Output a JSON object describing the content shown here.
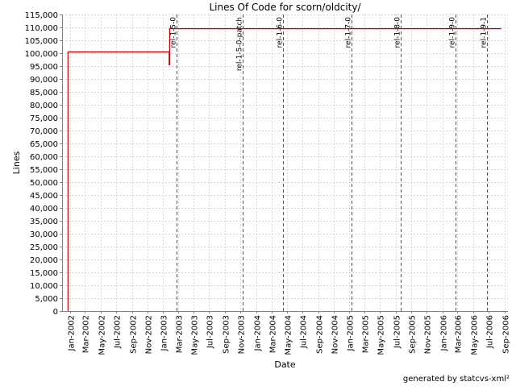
{
  "chart_data": {
    "type": "line",
    "title": "Lines Of Code for scorn/oldcity/",
    "xlabel": "Date",
    "ylabel": "Lines",
    "ylim": [
      0,
      115000
    ],
    "xlim": [
      "2001-12-01",
      "2006-09-15"
    ],
    "y_ticks": [
      0,
      5000,
      10000,
      15000,
      20000,
      25000,
      30000,
      35000,
      40000,
      45000,
      50000,
      55000,
      60000,
      65000,
      70000,
      75000,
      80000,
      85000,
      90000,
      95000,
      100000,
      105000,
      110000,
      115000
    ],
    "y_tick_labels": [
      "0",
      "5,000",
      "10,000",
      "15,000",
      "20,000",
      "25,000",
      "30,000",
      "35,000",
      "40,000",
      "45,000",
      "50,000",
      "55,000",
      "60,000",
      "65,000",
      "70,000",
      "75,000",
      "80,000",
      "85,000",
      "90,000",
      "95,000",
      "100,000",
      "105,000",
      "110,000",
      "115,000"
    ],
    "x_ticks": [
      {
        "date": "2002-01-01",
        "label": "Jan-2002"
      },
      {
        "date": "2002-03-01",
        "label": "Mar-2002"
      },
      {
        "date": "2002-05-01",
        "label": "May-2002"
      },
      {
        "date": "2002-07-01",
        "label": "Jul-2002"
      },
      {
        "date": "2002-09-01",
        "label": "Sep-2002"
      },
      {
        "date": "2002-11-01",
        "label": "Nov-2002"
      },
      {
        "date": "2003-01-01",
        "label": "Jan-2003"
      },
      {
        "date": "2003-03-01",
        "label": "Mar-2003"
      },
      {
        "date": "2003-05-01",
        "label": "May-2003"
      },
      {
        "date": "2003-07-01",
        "label": "Jul-2003"
      },
      {
        "date": "2003-09-01",
        "label": "Sep-2003"
      },
      {
        "date": "2003-11-01",
        "label": "Nov-2003"
      },
      {
        "date": "2004-01-01",
        "label": "Jan-2004"
      },
      {
        "date": "2004-03-01",
        "label": "Mar-2004"
      },
      {
        "date": "2004-05-01",
        "label": "May-2004"
      },
      {
        "date": "2004-07-01",
        "label": "Jul-2004"
      },
      {
        "date": "2004-09-01",
        "label": "Sep-2004"
      },
      {
        "date": "2004-11-01",
        "label": "Nov-2004"
      },
      {
        "date": "2005-01-01",
        "label": "Jan-2005"
      },
      {
        "date": "2005-03-01",
        "label": "Mar-2005"
      },
      {
        "date": "2005-05-01",
        "label": "May-2005"
      },
      {
        "date": "2005-07-01",
        "label": "Jul-2005"
      },
      {
        "date": "2005-09-01",
        "label": "Sep-2005"
      },
      {
        "date": "2005-11-01",
        "label": "Nov-2005"
      },
      {
        "date": "2006-01-01",
        "label": "Jan-2006"
      },
      {
        "date": "2006-03-01",
        "label": "Mar-2006"
      },
      {
        "date": "2006-05-01",
        "label": "May-2006"
      },
      {
        "date": "2006-07-01",
        "label": "Jul-2006"
      },
      {
        "date": "2006-09-01",
        "label": "Sep-2006"
      }
    ],
    "grid": true,
    "series": [
      {
        "color": "#cc0000",
        "points": [
          {
            "x": "2001-12-24",
            "y": 0
          },
          {
            "x": "2001-12-24",
            "y": 100500
          },
          {
            "x": "2003-01-25",
            "y": 100500
          },
          {
            "x": "2003-01-25",
            "y": 95500
          },
          {
            "x": "2003-01-27",
            "y": 95500
          },
          {
            "x": "2003-01-27",
            "y": 109500
          },
          {
            "x": "2006-08-20",
            "y": 109500
          }
        ]
      }
    ],
    "annotations": [
      {
        "date": "2003-02-22",
        "label": "rel-1-5-0"
      },
      {
        "date": "2003-11-08",
        "label": "rel-1-5-0-patch"
      },
      {
        "date": "2004-04-15",
        "label": "rel-1-6-0"
      },
      {
        "date": "2005-01-10",
        "label": "rel-1-7-0"
      },
      {
        "date": "2005-07-20",
        "label": "rel-1-8-0"
      },
      {
        "date": "2006-02-20",
        "label": "rel-1-9-0"
      },
      {
        "date": "2006-06-25",
        "label": "rel-1-9-1"
      }
    ]
  },
  "footer": "generated by statcvs-xml²"
}
